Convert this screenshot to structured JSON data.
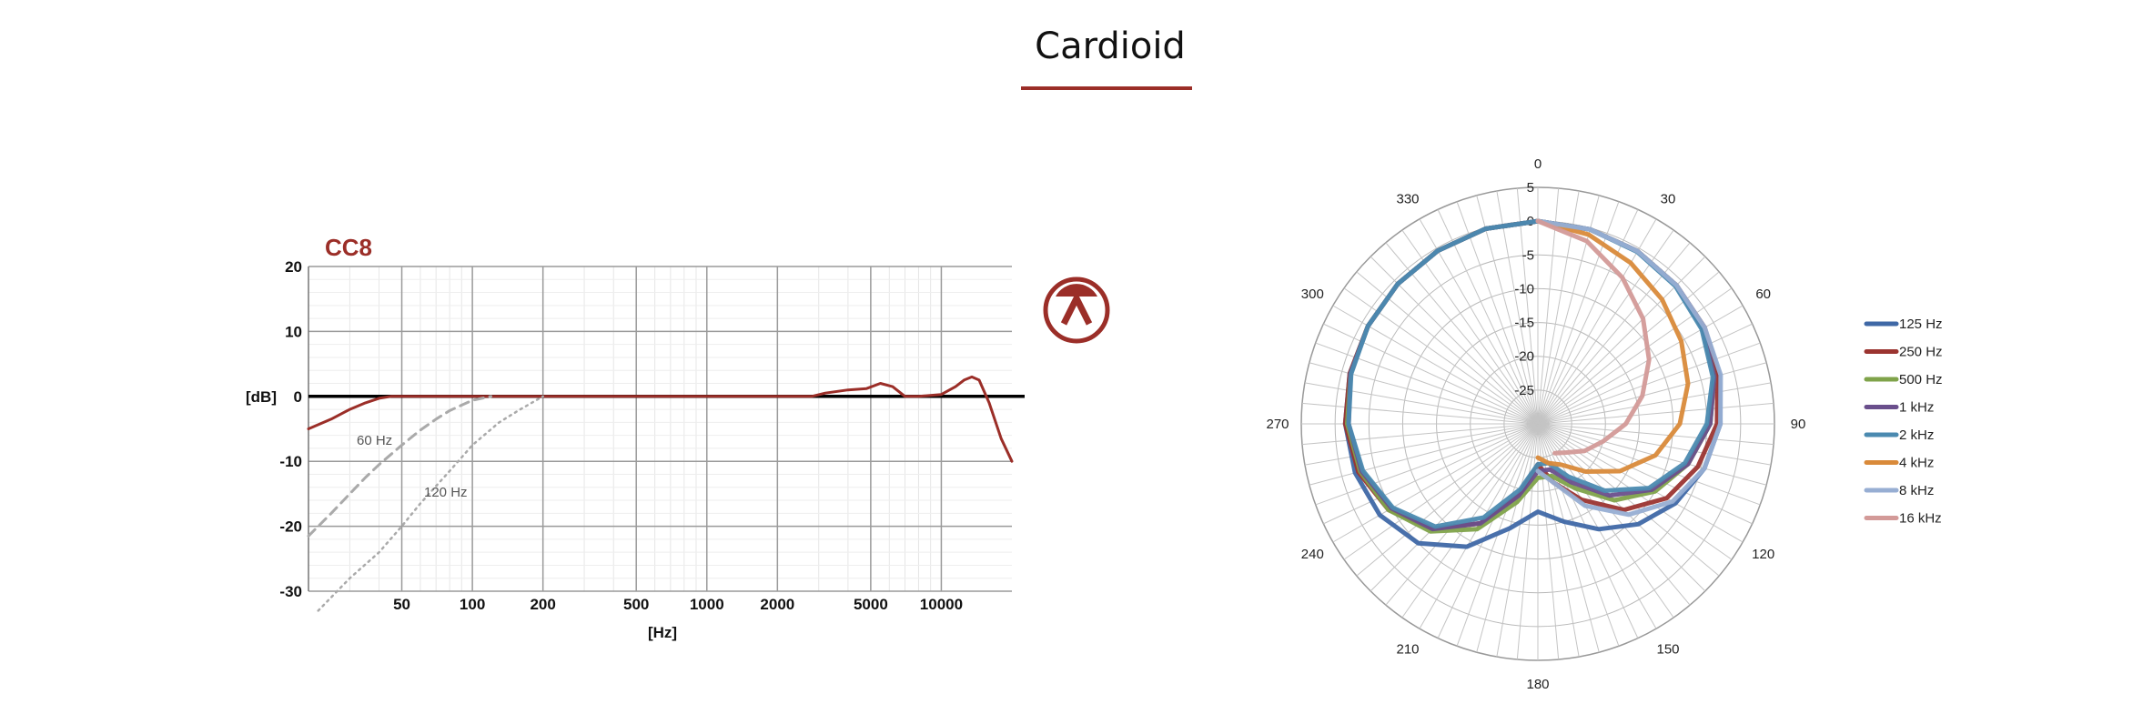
{
  "title": "Cardioid",
  "colors": {
    "accent": "#9b2e28"
  },
  "chart_data": [
    {
      "type": "line",
      "title": "CC8",
      "xlabel": "[Hz]",
      "ylabel": "[dB]",
      "x_scale": "log",
      "xlim": [
        20,
        20000
      ],
      "ylim": [
        -30,
        20
      ],
      "x_ticks": [
        50,
        100,
        200,
        500,
        1000,
        2000,
        5000,
        10000
      ],
      "x_tick_labels": [
        "50",
        "100",
        "200",
        "500",
        "1000",
        "2000",
        "5000",
        "10000"
      ],
      "y_ticks": [
        20,
        10,
        0,
        -10,
        -20,
        -30
      ],
      "y_tick_labels": [
        "20",
        "10",
        "0",
        "-10",
        "-20",
        "-30"
      ],
      "grid": true,
      "series": [
        {
          "color": "#9b2e28",
          "style": "solid",
          "x": [
            20,
            25,
            30,
            35,
            40,
            45,
            50,
            100,
            1000,
            2800,
            3200,
            4000,
            4800,
            5500,
            6200,
            7000,
            8000,
            10000,
            11500,
            12500,
            13500,
            14500,
            16000,
            18000,
            20000
          ],
          "y": [
            -5,
            -3.5,
            -2,
            -1,
            -0.3,
            0,
            0,
            0,
            0,
            0,
            0.5,
            1,
            1.2,
            2,
            1.5,
            0,
            0,
            0.3,
            1.5,
            2.5,
            3,
            2.5,
            -1,
            -6.5,
            -10
          ]
        },
        {
          "name": "60 Hz",
          "color": "#aaaaaa",
          "style": "dashed",
          "x": [
            20,
            25,
            30,
            35,
            40,
            50,
            60,
            70,
            80,
            100,
            120
          ],
          "y": [
            -21.5,
            -18,
            -15,
            -12.5,
            -10.5,
            -7.5,
            -5.2,
            -3.5,
            -2.2,
            -0.6,
            0
          ]
        },
        {
          "name": "120 Hz",
          "color": "#aaaaaa",
          "style": "dotted",
          "x": [
            22,
            30,
            40,
            50,
            60,
            80,
            100,
            130,
            160,
            200
          ],
          "y": [
            -33,
            -28,
            -24,
            -20,
            -16.5,
            -11.5,
            -7.5,
            -4,
            -2,
            0
          ]
        }
      ],
      "annotations": [
        "60 Hz",
        "120 Hz"
      ]
    },
    {
      "type": "polar",
      "angle_ticks": [
        "0",
        "30",
        "60",
        "90",
        "120",
        "150",
        "180",
        "210",
        "240",
        "270",
        "300",
        "330"
      ],
      "radial_ticks": [
        "5",
        "0",
        "-5",
        "-10",
        "-15",
        "-20",
        "-25"
      ],
      "rlim": [
        -30,
        5
      ],
      "legend_position": "right",
      "series": [
        {
          "name": "125 Hz",
          "color": "#3f68a6",
          "angles": [
            0,
            15,
            30,
            45,
            60,
            75,
            90,
            105,
            120,
            135,
            150,
            165,
            180,
            195,
            210,
            225,
            240,
            255,
            270,
            285,
            300,
            315,
            330,
            345,
            360
          ],
          "values": [
            0,
            -0.2,
            -0.5,
            -1,
            -1.5,
            -2.2,
            -3,
            -4.5,
            -6.5,
            -9,
            -12,
            -15,
            -17,
            -14,
            -9,
            -5,
            -3,
            -2,
            -1.5,
            -1.2,
            -1,
            -0.7,
            -0.4,
            -0.1,
            0
          ]
        },
        {
          "name": "250 Hz",
          "color": "#9b3430",
          "angles": [
            0,
            15,
            30,
            45,
            60,
            75,
            90,
            105,
            120,
            135,
            150,
            165,
            180,
            195,
            210,
            225,
            240,
            255,
            270,
            285,
            300,
            315,
            330,
            345,
            360
          ],
          "values": [
            0,
            -0.2,
            -0.5,
            -1,
            -1.5,
            -2.5,
            -3.5,
            -5.5,
            -8,
            -12,
            -17,
            -21,
            -24,
            -19,
            -13,
            -8,
            -4.5,
            -2.5,
            -1.5,
            -1.2,
            -1,
            -0.7,
            -0.4,
            -0.1,
            0
          ]
        },
        {
          "name": "500 Hz",
          "color": "#7fa34a",
          "angles": [
            0,
            15,
            30,
            45,
            60,
            75,
            90,
            105,
            120,
            135,
            150,
            165,
            180,
            195,
            210,
            225,
            240,
            255,
            270,
            285,
            300,
            315,
            330,
            345,
            360
          ],
          "values": [
            0,
            -0.2,
            -0.5,
            -1,
            -1.8,
            -3,
            -4.5,
            -7,
            -10,
            -14,
            -19,
            -22,
            -22,
            -18,
            -12,
            -7.5,
            -4.5,
            -2.8,
            -1.8,
            -1.3,
            -1,
            -0.7,
            -0.4,
            -0.1,
            0
          ]
        },
        {
          "name": "1 kHz",
          "color": "#6a4f8c",
          "angles": [
            0,
            15,
            30,
            45,
            60,
            75,
            90,
            105,
            120,
            135,
            150,
            165,
            180,
            195,
            210,
            225,
            240,
            255,
            270,
            285,
            300,
            315,
            330,
            345,
            360
          ],
          "values": [
            0,
            -0.2,
            -0.5,
            -1,
            -1.8,
            -3,
            -4.5,
            -7,
            -10.5,
            -15,
            -20,
            -23,
            -23,
            -19,
            -13,
            -8,
            -5,
            -3,
            -2,
            -1.3,
            -1,
            -0.7,
            -0.4,
            -0.1,
            0
          ]
        },
        {
          "name": "2 kHz",
          "color": "#4b8ab0",
          "angles": [
            0,
            15,
            30,
            45,
            60,
            75,
            90,
            105,
            120,
            135,
            150,
            165,
            180,
            195,
            210,
            225,
            240,
            255,
            270,
            285,
            300,
            315,
            330,
            345,
            360
          ],
          "values": [
            0,
            -0.2,
            -0.6,
            -1.2,
            -2,
            -3.2,
            -5,
            -7.5,
            -11,
            -16,
            -21,
            -24,
            -24,
            -20,
            -14,
            -8.5,
            -5.2,
            -3.2,
            -2,
            -1.4,
            -1,
            -0.7,
            -0.4,
            -0.1,
            0
          ]
        },
        {
          "name": "4 kHz",
          "color": "#d98a3a",
          "angles": [
            0,
            15,
            30,
            45,
            60,
            75,
            90,
            105,
            120,
            135,
            150,
            165,
            180
          ],
          "values": [
            0,
            -1,
            -2.5,
            -4,
            -5.5,
            -7,
            -9,
            -12,
            -16,
            -20,
            -23,
            -24,
            -25
          ]
        },
        {
          "name": "8 kHz",
          "color": "#97aed3",
          "angles": [
            0,
            15,
            30,
            45,
            60,
            75,
            90,
            105,
            120,
            135,
            150,
            165,
            180
          ],
          "values": [
            0,
            -0.2,
            -0.5,
            -1,
            -1.5,
            -2,
            -3,
            -4.5,
            -7,
            -11,
            -16,
            -21,
            -23
          ]
        },
        {
          "name": "16 kHz",
          "color": "#d39a98",
          "angles": [
            0,
            15,
            30,
            45,
            60,
            75,
            90,
            105,
            120,
            135,
            150
          ],
          "values": [
            0,
            -2,
            -5,
            -8,
            -11,
            -14,
            -17,
            -20,
            -22,
            -24,
            -25
          ]
        }
      ]
    }
  ]
}
